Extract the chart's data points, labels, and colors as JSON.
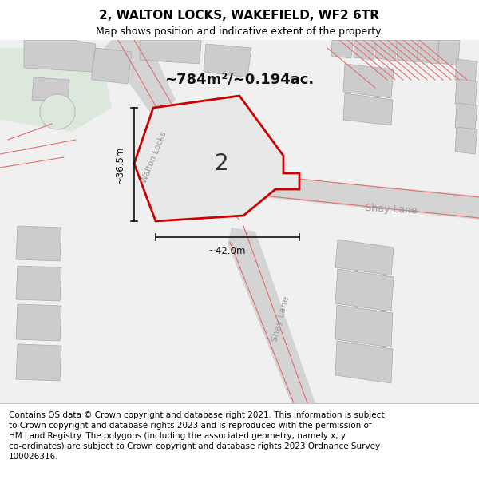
{
  "title": "2, WALTON LOCKS, WAKEFIELD, WF2 6TR",
  "subtitle": "Map shows position and indicative extent of the property.",
  "footer": "Contains OS data © Crown copyright and database right 2021. This information is subject\nto Crown copyright and database rights 2023 and is reproduced with the permission of\nHM Land Registry. The polygons (including the associated geometry, namely x, y\nco-ordinates) are subject to Crown copyright and database rights 2023 Ordnance Survey\n100026316.",
  "area_label": "~784m²/~0.194ac.",
  "width_label": "~42.0m",
  "height_label": "~36.5m",
  "property_number": "2",
  "map_bg": "#f0f0f0",
  "road_fill": "#d4d4d4",
  "building_fill": "#cccccc",
  "green_fill": "#dde8dd",
  "property_fill": "#e8e8e8",
  "property_outline": "#cc0000",
  "red_line": "#e07070",
  "dim_color": "#111111",
  "road_label_color": "#999999",
  "title_fontsize": 11,
  "subtitle_fontsize": 9,
  "footer_fontsize": 7.5,
  "title_weight": "bold"
}
